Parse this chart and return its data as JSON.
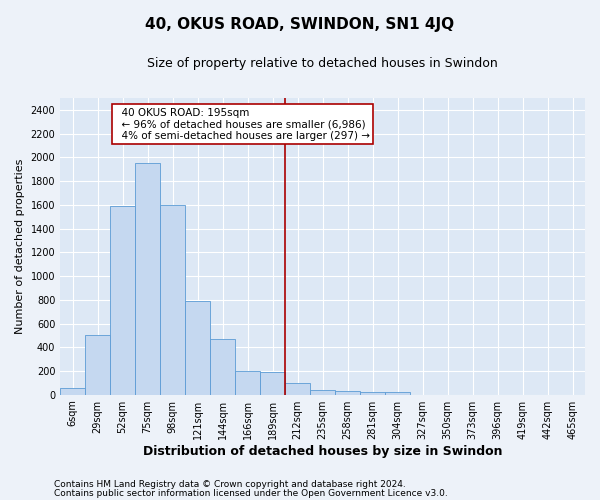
{
  "title": "40, OKUS ROAD, SWINDON, SN1 4JQ",
  "subtitle": "Size of property relative to detached houses in Swindon",
  "xlabel": "Distribution of detached houses by size in Swindon",
  "ylabel": "Number of detached properties",
  "categories": [
    "6sqm",
    "29sqm",
    "52sqm",
    "75sqm",
    "98sqm",
    "121sqm",
    "144sqm",
    "166sqm",
    "189sqm",
    "212sqm",
    "235sqm",
    "258sqm",
    "281sqm",
    "304sqm",
    "327sqm",
    "350sqm",
    "373sqm",
    "396sqm",
    "419sqm",
    "442sqm",
    "465sqm"
  ],
  "bar_heights": [
    60,
    500,
    1590,
    1950,
    1600,
    790,
    470,
    200,
    190,
    100,
    40,
    30,
    20,
    20,
    0,
    0,
    0,
    0,
    0,
    0,
    0
  ],
  "bar_color": "#c5d8f0",
  "bar_edge_color": "#5b9bd5",
  "vline_x": 8.5,
  "vline_color": "#aa0000",
  "annotation_title": "40 OKUS ROAD: 195sqm",
  "annotation_line1": "← 96% of detached houses are smaller (6,986)",
  "annotation_line2": "4% of semi-detached houses are larger (297) →",
  "annotation_box_color": "#aa0000",
  "ylim": [
    0,
    2500
  ],
  "yticks": [
    0,
    200,
    400,
    600,
    800,
    1000,
    1200,
    1400,
    1600,
    1800,
    2000,
    2200,
    2400
  ],
  "footer1": "Contains HM Land Registry data © Crown copyright and database right 2024.",
  "footer2": "Contains public sector information licensed under the Open Government Licence v3.0.",
  "bg_color": "#dde8f5",
  "fig_color": "#edf2f9",
  "grid_color": "#ffffff",
  "title_fontsize": 11,
  "subtitle_fontsize": 9,
  "label_fontsize": 8,
  "tick_fontsize": 7,
  "footer_fontsize": 6.5,
  "ann_fontsize": 7.5
}
